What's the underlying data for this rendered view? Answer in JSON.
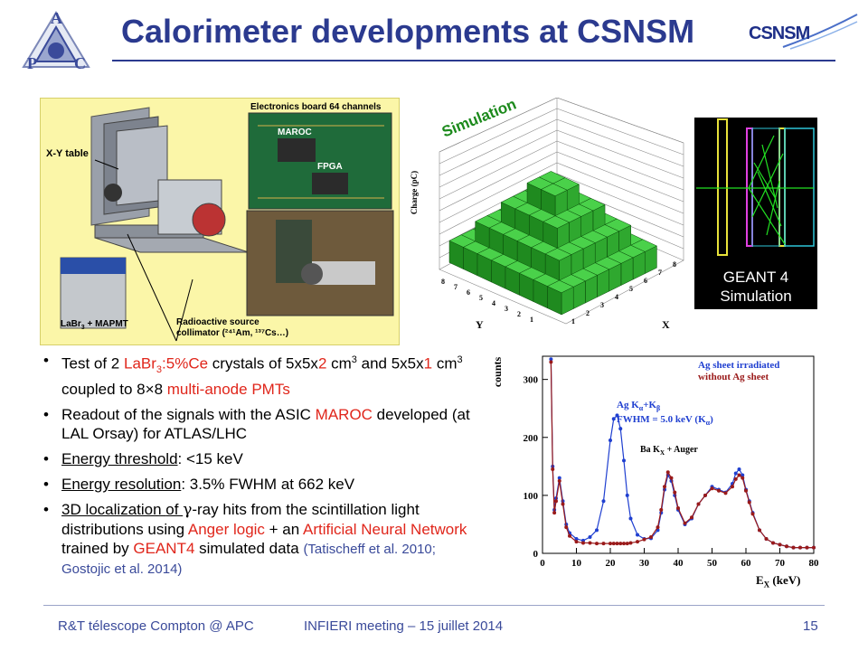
{
  "header": {
    "title": "Calorimeter developments at CSNSM",
    "logo_left_letters": [
      "A",
      "P",
      "C"
    ],
    "logo_right_text": "CSNSM"
  },
  "figure_left": {
    "labels": {
      "xy_table": "X-Y table",
      "electronics": "Electronics board 64 channels",
      "maroc": "MAROC",
      "fpga": "FPGA",
      "labr3": "LaBr",
      "labr3_sub": "3",
      "labr3_rest": " + MAPMT",
      "source_line1": "Radioactive source",
      "source_line2": "collimator (²⁴¹Am, ¹³⁷Cs…)"
    }
  },
  "figure_3d": {
    "label": "Simulation",
    "zlabel": "Charge (pC)",
    "ylabel": "Y",
    "xlabel": "X",
    "ticks": [
      "1",
      "2",
      "3",
      "4",
      "5",
      "6",
      "7",
      "8"
    ]
  },
  "figure_geant": {
    "line1": "GEANT 4",
    "line2": "Simulation"
  },
  "bullets": {
    "b1_a": "Test of 2 ",
    "b1_b": "LaBr",
    "b1_c": "3",
    "b1_d": ":5%Ce",
    "b1_e": " crystals of 5x5x",
    "b1_f": "2",
    "b1_g": " cm",
    "b1_h": "3",
    "b1_i": " and 5x5x",
    "b1_j": "1",
    "b1_k": " cm",
    "b1_l": "3",
    "b1_m": " coupled to 8",
    "b1_n": "×",
    "b1_o": "8 ",
    "b1_p": "multi-anode PMTs",
    "b2_a": "Readout of the signals with the ASIC ",
    "b2_b": "MAROC",
    "b2_c": " developed (at LAL Orsay) for ATLAS/LHC",
    "b3_a": "Energy threshold",
    "b3_b": ": <15 keV",
    "b4_a": "Energy resolution",
    "b4_b": ": 3.5% FWHM at 662 keV",
    "b5_a": "3D localization ",
    "b5_b": "of ",
    "b5_c": "γ",
    "b5_d": "-ray hits from the scintillation light distributions using ",
    "b5_e": "Anger logic",
    "b5_f": " + an ",
    "b5_g": "Artificial Neural Network",
    "b5_h": " trained by ",
    "b5_i": "GEANT4",
    "b5_j": " simulated data ",
    "b5_k": "(Tatischeff et al. 2010; Gostojic et al. 2014)"
  },
  "chart_data": {
    "type": "line",
    "xlabel": "E",
    "xlabel_sub": "X",
    "xlabel_unit": " (keV)",
    "ylabel": "counts",
    "xlim": [
      0,
      80
    ],
    "ylim": [
      0,
      340
    ],
    "x_ticks": [
      "0",
      "10",
      "20",
      "30",
      "40",
      "50",
      "60",
      "70",
      "80"
    ],
    "y_ticks": [
      "0",
      "100",
      "200",
      "300"
    ],
    "legend_placement": "top-right",
    "annotations": {
      "ag": "Ag K",
      "ag_alpha": "α",
      "ag_plus": "+K",
      "ag_beta": "β",
      "fwhm": "FWHM = 5.0 keV (K",
      "fwhm_alpha": "α",
      "fwhm_close": ")",
      "ba": "Ba K",
      "ba_sub": "X",
      "ba_rest": " + Auger"
    },
    "x": [
      2.5,
      3,
      3.5,
      4,
      5,
      6,
      7,
      8,
      10,
      12,
      14,
      16,
      18,
      20,
      21,
      22,
      23,
      24,
      25,
      26,
      28,
      30,
      32,
      34,
      35,
      36,
      37,
      38,
      39,
      40,
      42,
      44,
      46,
      48,
      50,
      52,
      54,
      56,
      57,
      58,
      59,
      60,
      61,
      62,
      64,
      66,
      68,
      70,
      72,
      74,
      76,
      78,
      80
    ],
    "series": [
      {
        "name": "Ag sheet irradiated",
        "color": "#1f3fd0",
        "values": [
          335,
          150,
          75,
          95,
          130,
          90,
          50,
          35,
          25,
          22,
          28,
          40,
          90,
          195,
          232,
          238,
          215,
          160,
          100,
          60,
          32,
          25,
          26,
          40,
          70,
          110,
          135,
          125,
          100,
          75,
          50,
          60,
          85,
          100,
          115,
          110,
          105,
          120,
          138,
          145,
          135,
          110,
          90,
          70,
          40,
          25,
          18,
          15,
          12,
          10,
          10,
          10,
          10
        ]
      },
      {
        "name": "without Ag sheet",
        "color": "#9a1a1a",
        "values": [
          330,
          145,
          70,
          90,
          125,
          85,
          45,
          30,
          20,
          18,
          18,
          17,
          17,
          17,
          17,
          17,
          17,
          17,
          17,
          18,
          20,
          24,
          28,
          45,
          75,
          115,
          140,
          130,
          105,
          78,
          52,
          62,
          85,
          100,
          112,
          108,
          104,
          115,
          128,
          135,
          130,
          108,
          88,
          68,
          40,
          25,
          18,
          15,
          12,
          10,
          10,
          10,
          10
        ]
      }
    ]
  },
  "footer": {
    "left": "R&T télescope Compton @ APC",
    "middle": "INFIERI meeting – 15 juillet 2014",
    "page": "15"
  }
}
